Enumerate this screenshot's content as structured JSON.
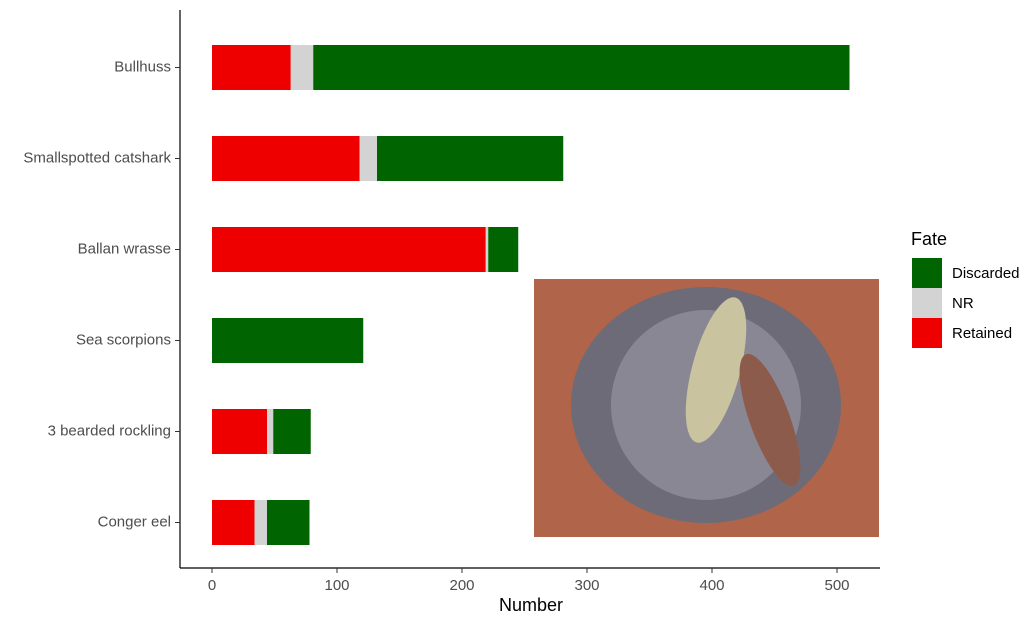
{
  "chart_data": {
    "type": "stacked-bar-horizontal",
    "x_label": "Number",
    "categories": [
      "Bullhuss",
      "Smallspotted catshark",
      "Ballan wrasse",
      "Sea scorpions",
      "3 bearded rockling",
      "Conger eel"
    ],
    "series": [
      {
        "name": "Discarded",
        "color": "#006400",
        "values": [
          429,
          149,
          24,
          121,
          30,
          34
        ]
      },
      {
        "name": "NR",
        "color": "#d3d3d3",
        "values": [
          18,
          14,
          2,
          0,
          5,
          10
        ]
      },
      {
        "name": "Retained",
        "color": "#ee0000",
        "values": [
          63,
          118,
          219,
          0,
          44,
          34
        ]
      }
    ],
    "xlim": [
      -25.6,
      534.4
    ],
    "xticks": [
      0,
      100,
      200,
      300,
      400,
      500
    ],
    "legend_title": "Fate",
    "legend_position": "right",
    "grid": false
  }
}
